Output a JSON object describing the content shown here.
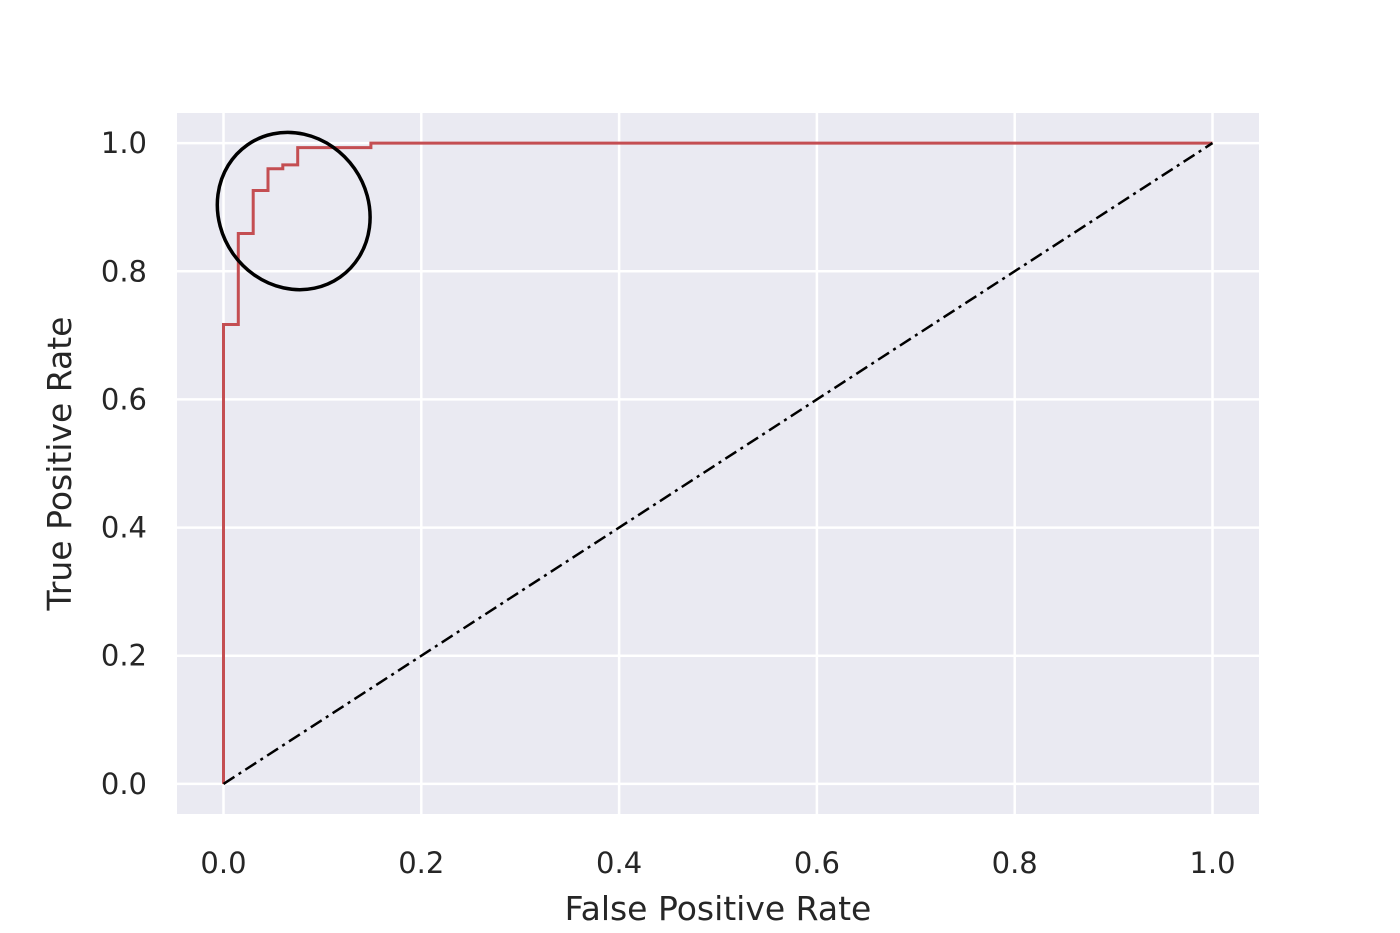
{
  "chart_data": {
    "type": "line",
    "title": "",
    "xlabel": "False Positive Rate",
    "ylabel": "True Positive Rate",
    "xlim": [
      -0.047,
      1.047
    ],
    "ylim": [
      -0.047,
      1.047
    ],
    "xticks": [
      0.0,
      0.2,
      0.4,
      0.6,
      0.8,
      1.0
    ],
    "yticks": [
      0.0,
      0.2,
      0.4,
      0.6,
      0.8,
      1.0
    ],
    "xtick_labels": [
      "0.0",
      "0.2",
      "0.4",
      "0.6",
      "0.8",
      "1.0"
    ],
    "ytick_labels": [
      "0.0",
      "0.2",
      "0.4",
      "0.6",
      "0.8",
      "1.0"
    ],
    "grid": true,
    "background": "#eaeaf2",
    "series": [
      {
        "style": "solid",
        "color": "#c44e52",
        "points": [
          [
            0.0,
            0.0
          ],
          [
            0.0,
            0.717
          ],
          [
            0.015,
            0.717
          ],
          [
            0.015,
            0.859
          ],
          [
            0.03,
            0.859
          ],
          [
            0.03,
            0.926
          ],
          [
            0.045,
            0.926
          ],
          [
            0.045,
            0.96
          ],
          [
            0.06,
            0.96
          ],
          [
            0.06,
            0.966
          ],
          [
            0.075,
            0.966
          ],
          [
            0.075,
            0.993
          ],
          [
            0.149,
            0.993
          ],
          [
            0.149,
            1.0
          ],
          [
            1.0,
            1.0
          ]
        ]
      },
      {
        "style": "dash-dot",
        "color": "#000000",
        "points": [
          [
            0.0,
            0.0
          ],
          [
            1.0,
            1.0
          ]
        ]
      }
    ],
    "annotations": [
      {
        "type": "hand-drawn-ellipse",
        "color": "#000000",
        "center": [
          0.071,
          0.894
        ],
        "rx": 0.075,
        "ry": 0.126,
        "rotation_deg": -35
      }
    ]
  }
}
